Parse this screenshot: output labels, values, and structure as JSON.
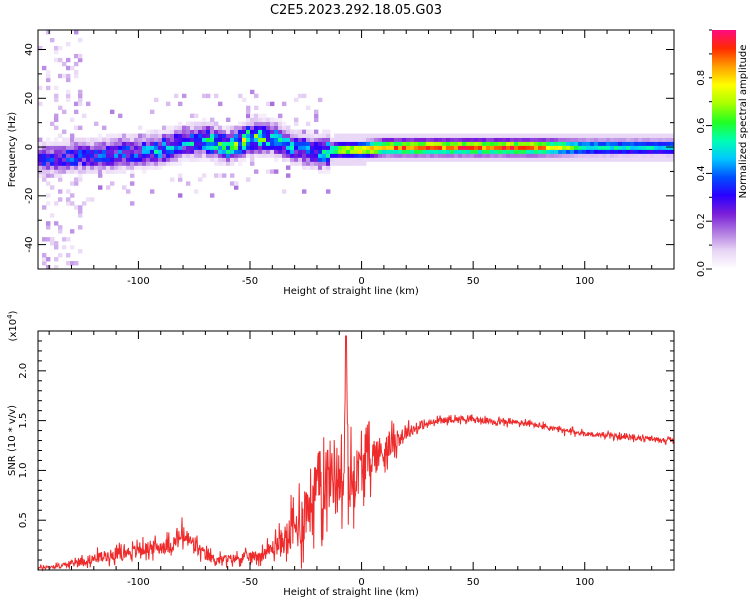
{
  "figure": {
    "title": "C2E5.2023.292.18.05.G03"
  },
  "colors": {
    "snr_line": "#ee2a2a",
    "colormap": [
      "#ffffff",
      "#e8d5f5",
      "#b07be0",
      "#7a1fd8",
      "#2a00ff",
      "#0050ff",
      "#00c8ff",
      "#00ffb0",
      "#22ff22",
      "#a8ff00",
      "#ffff00",
      "#ffa000",
      "#ff2a00",
      "#ff0a80"
    ]
  },
  "chart_data": [
    {
      "type": "heatmap",
      "xlabel": "Height of straight line (km)",
      "ylabel": "Frequency (Hz)",
      "xlim": [
        -145,
        140
      ],
      "ylim": [
        -50,
        48
      ],
      "xticks": [
        "-100",
        "-50",
        "0",
        "50",
        "100"
      ],
      "xtick_values": [
        -100,
        -50,
        0,
        50,
        100
      ],
      "yticks": [
        "-40",
        "-20",
        "0",
        "20",
        "40"
      ],
      "ytick_values": [
        -40,
        -20,
        0,
        20,
        40
      ],
      "colorbar": {
        "label": "Normalized spectral amplitude",
        "range": [
          0,
          1
        ],
        "ticks": [
          "0.0",
          "0.2",
          "0.4",
          "0.6",
          "0.8"
        ],
        "tick_values": [
          0.0,
          0.2,
          0.4,
          0.6,
          0.8
        ]
      },
      "ridge": {
        "x": [
          -145,
          -130,
          -115,
          -100,
          -90,
          -80,
          -70,
          -60,
          -50,
          -40,
          -30,
          -20,
          -10,
          0,
          10,
          20,
          40,
          60,
          80,
          100,
          120,
          140
        ],
        "center_hz": [
          -5,
          -4,
          -3,
          -2,
          -1,
          2,
          3,
          0,
          4,
          4,
          0,
          -2,
          -1,
          -1,
          0,
          0,
          0,
          0,
          0,
          0,
          0,
          0
        ],
        "peak_amplitude": [
          0.3,
          0.35,
          0.35,
          0.35,
          0.45,
          0.4,
          0.5,
          0.55,
          0.6,
          0.5,
          0.4,
          0.4,
          0.7,
          0.85,
          0.85,
          0.9,
          0.9,
          0.9,
          0.9,
          0.55,
          0.5,
          0.5
        ]
      }
    },
    {
      "type": "line",
      "xlabel": "Height of straight line (km)",
      "ylabel": "SNR (10 * v/v)",
      "yscale_label": "(x10",
      "yscale_exponent": "4",
      "yscale_suffix": ")",
      "xlim": [
        -145,
        140
      ],
      "ylim": [
        0.0,
        24000
      ],
      "xticks": [
        "-100",
        "-50",
        "0",
        "50",
        "100"
      ],
      "xtick_values": [
        -100,
        -50,
        0,
        50,
        100
      ],
      "yticks": [
        "0.5",
        "1.0",
        "1.5",
        "2.0"
      ],
      "ytick_values": [
        5000,
        10000,
        15000,
        20000
      ],
      "series": [
        {
          "x": [
            -145,
            -135,
            -125,
            -115,
            -105,
            -95,
            -85,
            -80,
            -75,
            -70,
            -65,
            -55,
            -45,
            -40,
            -35,
            -30,
            -26,
            -22,
            -18,
            -15,
            -12,
            -10,
            -8,
            -7,
            -6,
            -5,
            -3,
            0,
            3,
            6,
            10,
            15,
            20,
            25,
            30,
            35,
            40,
            45,
            50,
            55,
            60,
            70,
            80,
            90,
            100,
            110,
            120,
            130,
            140
          ],
          "y": [
            200,
            400,
            900,
            1400,
            1800,
            2200,
            2500,
            3500,
            2500,
            1500,
            1000,
            1200,
            1500,
            2200,
            3000,
            4000,
            5500,
            7500,
            9000,
            9500,
            10000,
            9500,
            8000,
            23500,
            9000,
            9000,
            9500,
            10500,
            11000,
            11500,
            12000,
            13000,
            13800,
            14300,
            14700,
            15000,
            15100,
            15200,
            15100,
            15000,
            14900,
            14800,
            14500,
            14000,
            13700,
            13500,
            13300,
            13150,
            13000
          ],
          "noise": [
            150,
            200,
            400,
            500,
            500,
            600,
            700,
            900,
            700,
            500,
            400,
            400,
            500,
            700,
            1200,
            2000,
            2600,
            3000,
            3200,
            3200,
            3000,
            2600,
            2500,
            0,
            2600,
            2600,
            2400,
            2000,
            1800,
            1700,
            1400,
            900,
            600,
            400,
            300,
            250,
            250,
            250,
            250,
            250,
            250,
            250,
            250,
            250,
            200,
            200,
            200,
            200,
            200
          ]
        }
      ]
    }
  ]
}
